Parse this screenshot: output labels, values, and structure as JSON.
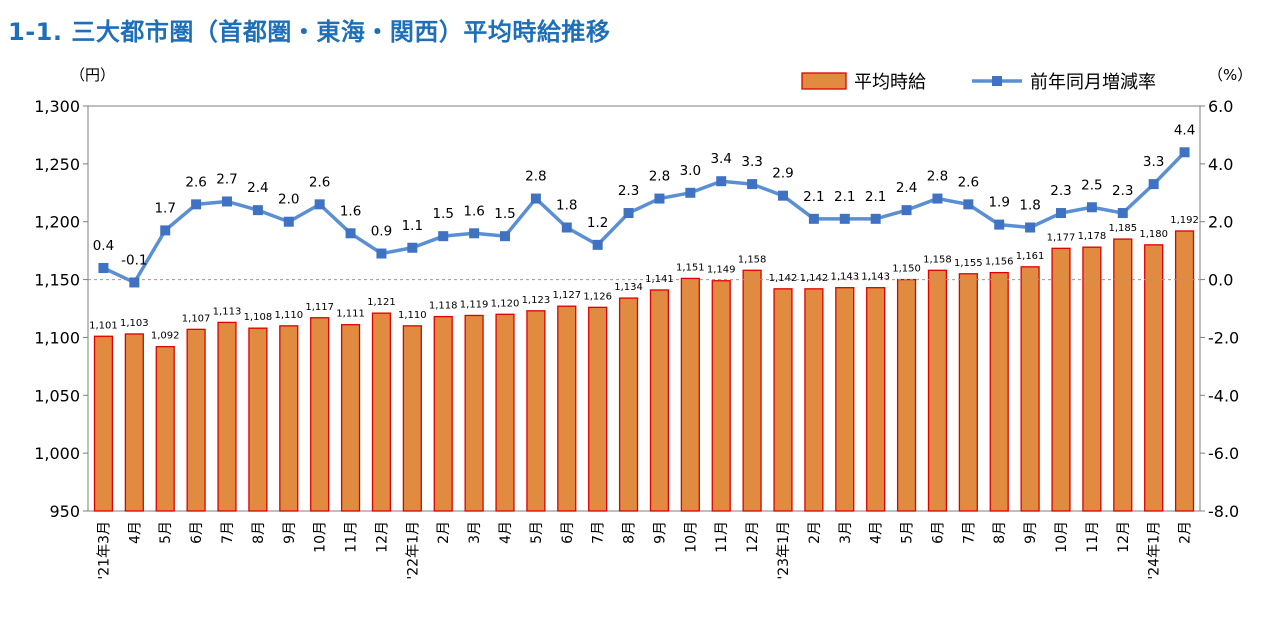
{
  "title": "1-1. 三大都市圏（首都圏・東海・関西）平均時給推移",
  "chart_data": {
    "type": "bar+line",
    "title": "1-1. 三大都市圏（首都圏・東海・関西）平均時給推移",
    "left_unit": "（円）",
    "right_unit": "（%）",
    "categories": [
      "'21年3月",
      "4月",
      "5月",
      "6月",
      "7月",
      "8月",
      "9月",
      "10月",
      "11月",
      "12月",
      "'22年1月",
      "2月",
      "3月",
      "4月",
      "5月",
      "6月",
      "7月",
      "8月",
      "9月",
      "10月",
      "11月",
      "12月",
      "'23年1月",
      "2月",
      "3月",
      "4月",
      "5月",
      "6月",
      "7月",
      "8月",
      "9月",
      "10月",
      "11月",
      "12月",
      "'24年1月",
      "2月"
    ],
    "series": [
      {
        "name": "平均時給",
        "type": "bar",
        "axis": "left",
        "values": [
          1101,
          1103,
          1092,
          1107,
          1113,
          1108,
          1110,
          1117,
          1111,
          1121,
          1110,
          1118,
          1119,
          1120,
          1123,
          1127,
          1126,
          1134,
          1141,
          1151,
          1149,
          1158,
          1142,
          1142,
          1143,
          1143,
          1150,
          1158,
          1155,
          1156,
          1161,
          1177,
          1178,
          1185,
          1180,
          1192
        ],
        "labels": [
          "1,101",
          "1,103",
          "1,092",
          "1,107",
          "1,113",
          "1,108",
          "1,110",
          "1,117",
          "1,111",
          "1,121",
          "1,110",
          "1,118",
          "1,119",
          "1,120",
          "1,123",
          "1,127",
          "1,126",
          "1,134",
          "1,141",
          "1,151",
          "1,149",
          "1,158",
          "1,142",
          "1,142",
          "1,143",
          "1,143",
          "1,150",
          "1,158",
          "1,155",
          "1,156",
          "1,161",
          "1,177",
          "1,178",
          "1,185",
          "1,180",
          "1,192"
        ]
      },
      {
        "name": "前年同月増減率",
        "type": "line",
        "axis": "right",
        "values": [
          0.4,
          -0.1,
          1.7,
          2.6,
          2.7,
          2.4,
          2.0,
          2.6,
          1.6,
          0.9,
          1.1,
          1.5,
          1.6,
          1.5,
          2.8,
          1.8,
          1.2,
          2.3,
          2.8,
          3.0,
          3.4,
          3.3,
          2.9,
          2.1,
          2.1,
          2.1,
          2.4,
          2.8,
          2.6,
          1.9,
          1.8,
          2.3,
          2.5,
          2.3,
          3.3,
          4.4
        ],
        "labels": [
          "0.4",
          "-0.1",
          "1.7",
          "2.6",
          "2.7",
          "2.4",
          "2.0",
          "2.6",
          "1.6",
          "0.9",
          "1.1",
          "1.5",
          "1.6",
          "1.5",
          "2.8",
          "1.8",
          "1.2",
          "2.3",
          "2.8",
          "3.0",
          "3.4",
          "3.3",
          "2.9",
          "2.1",
          "2.1",
          "2.1",
          "2.4",
          "2.8",
          "2.6",
          "1.9",
          "1.8",
          "2.3",
          "2.5",
          "2.3",
          "3.3",
          "4.4"
        ]
      }
    ],
    "y_left": {
      "range": [
        950,
        1300
      ],
      "ticks": [
        950,
        1000,
        1050,
        1100,
        1150,
        1200,
        1250,
        1300
      ],
      "tick_labels": [
        "950",
        "1,000",
        "1,050",
        "1,100",
        "1,150",
        "1,200",
        "1,250",
        "1,300"
      ]
    },
    "y_right": {
      "range": [
        -8,
        6
      ],
      "ticks": [
        -8,
        -6,
        -4,
        -2,
        0,
        2,
        4,
        6
      ],
      "tick_labels": [
        "-8.0",
        "-6.0",
        "-4.0",
        "-2.0",
        "0.0",
        "2.0",
        "4.0",
        "6.0"
      ]
    },
    "zero_reference_line": "dashed",
    "grid": false,
    "legend_position": "top-right",
    "colors": {
      "bar_fill": "#e08b3f",
      "bar_stroke": "#e00000",
      "line": "#5b8fd4",
      "marker": "#3f72c2",
      "title": "#1f6fb8",
      "zero_line": "#b09090"
    }
  }
}
